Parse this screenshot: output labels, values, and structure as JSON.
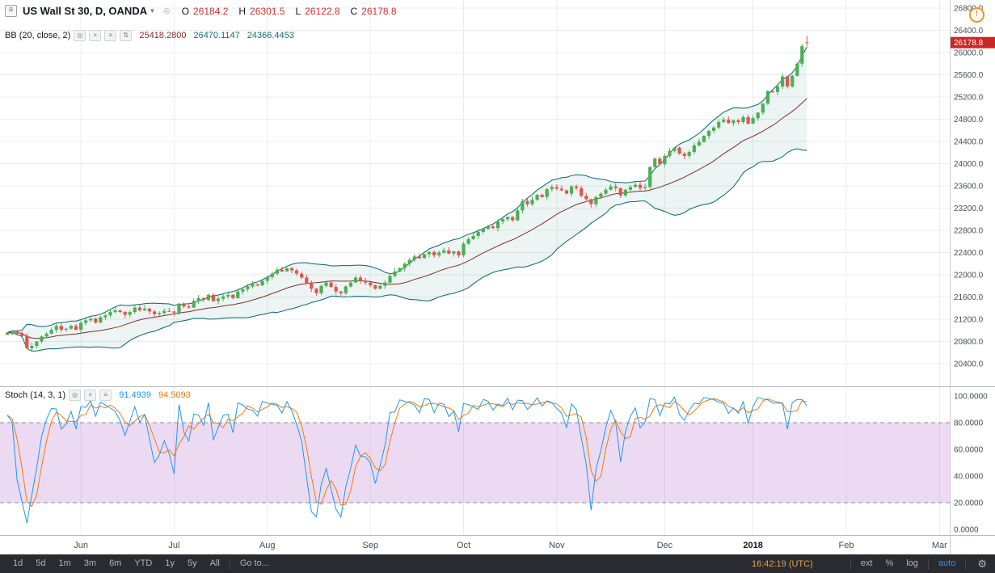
{
  "header": {
    "symbol": "US Wall St 30, D, OANDA",
    "ohlc": {
      "o_label": "O",
      "o": "26184.2",
      "h_label": "H",
      "h": "26301.5",
      "l_label": "L",
      "l": "26122.8",
      "c_label": "C",
      "c": "26178.8"
    },
    "indicator_bb": {
      "label": "BB (20, close, 2)",
      "basis": "25418.2800",
      "upper": "26470.1147",
      "lower": "24366.4453"
    }
  },
  "stoch_panel": {
    "label": "Stoch (14, 3, 1)",
    "k_value": "91.4939",
    "d_value": "94.5093"
  },
  "toolbar": {
    "ranges": [
      "1d",
      "5d",
      "1m",
      "3m",
      "6m",
      "YTD",
      "1y",
      "5y",
      "All"
    ],
    "goto": "Go to...",
    "clock": "16:42:19 (UTC)",
    "ext": "ext",
    "percent": "%",
    "log": "log",
    "auto": "auto"
  },
  "icons": {
    "menu": "≡",
    "caret": "▾",
    "eye": "◎",
    "close": "×",
    "settings": "≡",
    "arrows": "⇅",
    "gear": "⚙",
    "alert": "!"
  },
  "colors": {
    "up": "#4caf50",
    "down": "#e2544e",
    "bb_line": "#006a6a",
    "bb_basis": "#7e2f2f",
    "bb_fill": "rgba(0,106,106,0.07)",
    "grid": "#ececec",
    "sep": "#b5b8bf",
    "axis_border": "#c9ccd2",
    "axis_text": "#474d57",
    "tag_bg": "#cc2727",
    "stoch_k": "#2196f3",
    "stoch_d": "#f57c00",
    "stoch_band": "rgba(170,86,200,0.22)",
    "band_line": "#8a8d96",
    "toolbar_bg": "#2a2b31"
  },
  "chart_data": {
    "type": "candlestick",
    "title": "US Wall St 30, D, OANDA",
    "timeframe": "D",
    "indicators": {
      "bollinger": {
        "length": 20,
        "source": "close",
        "mult": 2,
        "basis": 25418.28,
        "upper": 26470.1147,
        "lower": 24366.4453
      },
      "stochastic": {
        "k_length": 14,
        "d_smooth": 3,
        "k_smooth": 1,
        "k": 91.4939,
        "d": 94.5093,
        "overbought": 80,
        "oversold": 20
      }
    },
    "price_axis": {
      "min": 20400,
      "max": 26800,
      "step": 400
    },
    "stoch_axis": {
      "min": 0,
      "max": 100,
      "step": 20,
      "band": [
        20,
        80
      ]
    },
    "months": [
      {
        "label": "Jun",
        "i": 15
      },
      {
        "label": "Jul",
        "i": 34
      },
      {
        "label": "Aug",
        "i": 53
      },
      {
        "label": "Sep",
        "i": 74
      },
      {
        "label": "Oct",
        "i": 93
      },
      {
        "label": "Nov",
        "i": 112
      },
      {
        "label": "Dec",
        "i": 134
      },
      {
        "label": "2018",
        "i": 152
      },
      {
        "label": "Feb",
        "i": 171
      },
      {
        "label": "Mar",
        "i": 190
      }
    ],
    "last_candle": {
      "o": 26184.2,
      "h": 26301.5,
      "l": 26122.8,
      "c": 26178.8
    },
    "closes": [
      20960,
      20980,
      20940,
      20900,
      20680,
      20720,
      20800,
      20890,
      20940,
      21010,
      21080,
      21010,
      21030,
      21080,
      21010,
      21135,
      21180,
      21210,
      21140,
      21235,
      21270,
      21330,
      21360,
      21330,
      21280,
      21330,
      21410,
      21360,
      21390,
      21340,
      21290,
      21310,
      21350,
      21340,
      21320,
      21480,
      21430,
      21410,
      21530,
      21580,
      21550,
      21640,
      21530,
      21570,
      21610,
      21640,
      21580,
      21700,
      21740,
      21790,
      21830,
      21810,
      21890,
      21960,
      22020,
      22090,
      22060,
      22120,
      22080,
      22020,
      21950,
      21840,
      21750,
      21670,
      21800,
      21860,
      21780,
      21700,
      21670,
      21790,
      21860,
      21950,
      21890,
      21860,
      21810,
      21750,
      21800,
      21860,
      21980,
      22060,
      22120,
      22200,
      22270,
      22330,
      22300,
      22370,
      22410,
      22350,
      22400,
      22440,
      22380,
      22420,
      22350,
      22560,
      22640,
      22700,
      22770,
      22830,
      22870,
      22840,
      22960,
      23000,
      23040,
      22980,
      23160,
      23330,
      23270,
      23350,
      23440,
      23400,
      23540,
      23580,
      23550,
      23520,
      23460,
      23590,
      23560,
      23420,
      23360,
      23270,
      23400,
      23460,
      23530,
      23590,
      23560,
      23430,
      23530,
      23580,
      23620,
      23560,
      23580,
      23940,
      24090,
      23990,
      24140,
      24230,
      24290,
      24180,
      24140,
      24210,
      24330,
      24390,
      24500,
      24590,
      24650,
      24750,
      24790,
      24730,
      24780,
      24750,
      24840,
      24720,
      24820,
      24920,
      25080,
      25300,
      25290,
      25390,
      25570,
      25390,
      25580,
      25800,
      26115,
      26178.8
    ]
  }
}
